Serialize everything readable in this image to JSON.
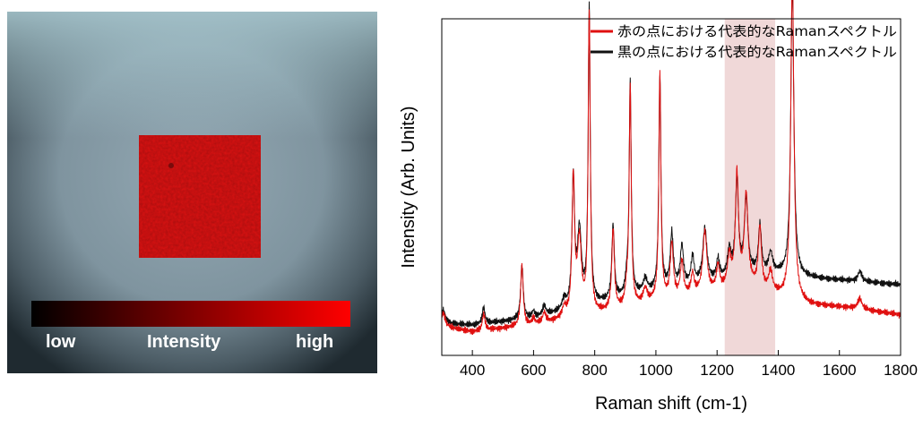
{
  "map": {
    "colorbar": {
      "low_label": "low",
      "title": "Intensity",
      "high_label": "high",
      "low_color": "#000000",
      "high_color": "#ff0000"
    },
    "background_color": "#8fa3ad",
    "overlay_color": "#e01010"
  },
  "chart_data": {
    "type": "line",
    "xlabel": "Raman shift (cm-1)",
    "ylabel": "Intensity (Arb. Units)",
    "xlim": [
      300,
      1800
    ],
    "ylim": [
      0,
      1
    ],
    "xticks": [
      400,
      600,
      800,
      1000,
      1200,
      1400,
      1600,
      1800
    ],
    "yticks_shown": false,
    "highlight_band": {
      "x": [
        1225,
        1390
      ],
      "color": "#f0d8d8"
    },
    "legend_position": "top-right",
    "series": [
      {
        "name": "赤の点における代表的なRamanスペクトル",
        "color": "#e01010",
        "baseline": [
          [
            300,
            0.085
          ],
          [
            400,
            0.07
          ],
          [
            600,
            0.09
          ],
          [
            800,
            0.12
          ],
          [
            1000,
            0.16
          ],
          [
            1200,
            0.19
          ],
          [
            1300,
            0.21
          ],
          [
            1380,
            0.18
          ],
          [
            1500,
            0.15
          ],
          [
            1650,
            0.14
          ],
          [
            1800,
            0.12
          ]
        ],
        "peaks": [
          [
            305,
            0.04,
            8
          ],
          [
            437,
            0.05,
            5
          ],
          [
            562,
            0.18,
            5
          ],
          [
            600,
            0.02,
            5
          ],
          [
            635,
            0.03,
            6
          ],
          [
            700,
            0.03,
            8
          ],
          [
            730,
            0.41,
            5
          ],
          [
            750,
            0.22,
            8
          ],
          [
            782,
            0.9,
            4
          ],
          [
            860,
            0.24,
            5
          ],
          [
            905,
            0.04,
            6
          ],
          [
            916,
            0.65,
            4
          ],
          [
            965,
            0.04,
            8
          ],
          [
            1013,
            0.67,
            4
          ],
          [
            1052,
            0.16,
            6
          ],
          [
            1085,
            0.1,
            6
          ],
          [
            1120,
            0.06,
            6
          ],
          [
            1160,
            0.18,
            8
          ],
          [
            1203,
            0.07,
            6
          ],
          [
            1240,
            0.09,
            7
          ],
          [
            1265,
            0.33,
            6
          ],
          [
            1295,
            0.26,
            7
          ],
          [
            1340,
            0.18,
            6
          ],
          [
            1375,
            0.06,
            8
          ],
          [
            1446,
            0.98,
            6
          ],
          [
            1667,
            0.03,
            8
          ]
        ]
      },
      {
        "name": "黒の点における代表的なRamanスペクトル",
        "color": "#111111",
        "baseline": [
          [
            300,
            0.095
          ],
          [
            400,
            0.09
          ],
          [
            600,
            0.11
          ],
          [
            800,
            0.15
          ],
          [
            1000,
            0.19
          ],
          [
            1200,
            0.22
          ],
          [
            1300,
            0.24
          ],
          [
            1400,
            0.24
          ],
          [
            1500,
            0.23
          ],
          [
            1650,
            0.22
          ],
          [
            1800,
            0.21
          ]
        ],
        "peaks": [
          [
            305,
            0.04,
            8
          ],
          [
            437,
            0.05,
            5
          ],
          [
            562,
            0.16,
            5
          ],
          [
            600,
            0.02,
            5
          ],
          [
            635,
            0.03,
            6
          ],
          [
            700,
            0.03,
            8
          ],
          [
            730,
            0.38,
            5
          ],
          [
            750,
            0.22,
            8
          ],
          [
            782,
            0.88,
            4
          ],
          [
            860,
            0.22,
            5
          ],
          [
            905,
            0.04,
            6
          ],
          [
            916,
            0.63,
            4
          ],
          [
            965,
            0.04,
            8
          ],
          [
            1013,
            0.64,
            4
          ],
          [
            1052,
            0.16,
            6
          ],
          [
            1085,
            0.12,
            6
          ],
          [
            1120,
            0.08,
            6
          ],
          [
            1160,
            0.16,
            8
          ],
          [
            1203,
            0.06,
            6
          ],
          [
            1240,
            0.08,
            7
          ],
          [
            1265,
            0.28,
            6
          ],
          [
            1295,
            0.22,
            7
          ],
          [
            1340,
            0.14,
            6
          ],
          [
            1375,
            0.06,
            8
          ],
          [
            1446,
            0.86,
            6
          ],
          [
            1667,
            0.03,
            8
          ]
        ]
      }
    ]
  }
}
